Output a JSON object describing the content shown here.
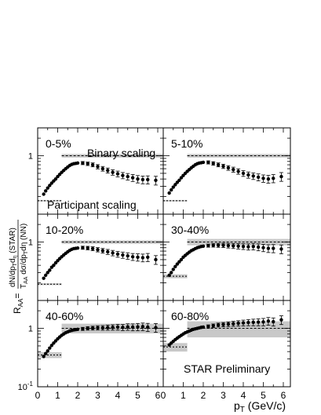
{
  "chart_data": {
    "type": "scatter",
    "y_scale": "log",
    "ylim": [
      0.1,
      3
    ],
    "xlim": [
      0,
      6.3
    ],
    "x_ticks": [
      0,
      1,
      2,
      3,
      4,
      5,
      6
    ],
    "y_ticks": [
      {
        "value": 0.1,
        "label": "10",
        "exp": "-1"
      },
      {
        "value": 1,
        "label": "1",
        "exp": ""
      }
    ],
    "xlabel": {
      "p": "p",
      "sub": "T",
      "rest": " (GeV/c)"
    },
    "ylabel": {
      "lhs": "R",
      "lhs_sub": "AA",
      "eq": "=",
      "num": "dN/dp",
      "num_sub1": "T",
      "num_mid": "d",
      "num_sub2": "η",
      "num_rest": " (STAR)",
      "den_pre": "T",
      "den_sub1": "AA",
      "den_mid": " dσ/dp",
      "den_sub2": "T",
      "den_mid2": "dη",
      "den_rest": " (NN)"
    },
    "annotations": {
      "binary": "Binary scaling",
      "participant": "Participant scaling",
      "star": "STAR Preliminary"
    },
    "panels": [
      {
        "label": "0-5%",
        "binary_band": [
          0.93,
          1.07
        ],
        "participant": {
          "value": 0.17,
          "band": [
            0.165,
            0.175
          ]
        },
        "points": [
          {
            "x": 0.3,
            "y": 0.22
          },
          {
            "x": 0.4,
            "y": 0.25
          },
          {
            "x": 0.5,
            "y": 0.28
          },
          {
            "x": 0.6,
            "y": 0.31
          },
          {
            "x": 0.7,
            "y": 0.34
          },
          {
            "x": 0.8,
            "y": 0.37
          },
          {
            "x": 0.9,
            "y": 0.4
          },
          {
            "x": 1.0,
            "y": 0.44
          },
          {
            "x": 1.1,
            "y": 0.48
          },
          {
            "x": 1.2,
            "y": 0.52
          },
          {
            "x": 1.3,
            "y": 0.56
          },
          {
            "x": 1.4,
            "y": 0.6
          },
          {
            "x": 1.5,
            "y": 0.64
          },
          {
            "x": 1.6,
            "y": 0.68
          },
          {
            "x": 1.7,
            "y": 0.71
          },
          {
            "x": 1.8,
            "y": 0.73
          },
          {
            "x": 1.9,
            "y": 0.74
          },
          {
            "x": 2.0,
            "y": 0.75
          },
          {
            "x": 2.25,
            "y": 0.75
          },
          {
            "x": 2.5,
            "y": 0.73
          },
          {
            "x": 2.75,
            "y": 0.7
          },
          {
            "x": 3.0,
            "y": 0.65
          },
          {
            "x": 3.25,
            "y": 0.6
          },
          {
            "x": 3.5,
            "y": 0.56
          },
          {
            "x": 3.75,
            "y": 0.52
          },
          {
            "x": 4.0,
            "y": 0.49
          },
          {
            "x": 4.25,
            "y": 0.46
          },
          {
            "x": 4.5,
            "y": 0.44
          },
          {
            "x": 4.75,
            "y": 0.42
          },
          {
            "x": 5.0,
            "y": 0.4
          },
          {
            "x": 5.25,
            "y": 0.39
          },
          {
            "x": 5.5,
            "y": 0.39
          },
          {
            "x": 5.9,
            "y": 0.38
          }
        ]
      },
      {
        "label": "5-10%",
        "binary_band": [
          0.93,
          1.07
        ],
        "participant": {
          "value": 0.17,
          "band": [
            0.165,
            0.175
          ]
        },
        "points": [
          {
            "x": 0.3,
            "y": 0.23
          },
          {
            "x": 0.4,
            "y": 0.26
          },
          {
            "x": 0.5,
            "y": 0.29
          },
          {
            "x": 0.6,
            "y": 0.32
          },
          {
            "x": 0.7,
            "y": 0.35
          },
          {
            "x": 0.8,
            "y": 0.38
          },
          {
            "x": 0.9,
            "y": 0.42
          },
          {
            "x": 1.0,
            "y": 0.46
          },
          {
            "x": 1.1,
            "y": 0.5
          },
          {
            "x": 1.2,
            "y": 0.54
          },
          {
            "x": 1.3,
            "y": 0.58
          },
          {
            "x": 1.4,
            "y": 0.62
          },
          {
            "x": 1.5,
            "y": 0.66
          },
          {
            "x": 1.6,
            "y": 0.7
          },
          {
            "x": 1.7,
            "y": 0.73
          },
          {
            "x": 1.8,
            "y": 0.75
          },
          {
            "x": 1.9,
            "y": 0.76
          },
          {
            "x": 2.0,
            "y": 0.77
          },
          {
            "x": 2.25,
            "y": 0.77
          },
          {
            "x": 2.5,
            "y": 0.74
          },
          {
            "x": 2.75,
            "y": 0.7
          },
          {
            "x": 3.0,
            "y": 0.66
          },
          {
            "x": 3.25,
            "y": 0.62
          },
          {
            "x": 3.5,
            "y": 0.58
          },
          {
            "x": 3.75,
            "y": 0.54
          },
          {
            "x": 4.0,
            "y": 0.5
          },
          {
            "x": 4.25,
            "y": 0.47
          },
          {
            "x": 4.5,
            "y": 0.45
          },
          {
            "x": 4.75,
            "y": 0.43
          },
          {
            "x": 5.0,
            "y": 0.41
          },
          {
            "x": 5.25,
            "y": 0.4
          },
          {
            "x": 5.5,
            "y": 0.41
          },
          {
            "x": 5.9,
            "y": 0.44
          }
        ]
      },
      {
        "label": "10-20%",
        "binary_band": [
          0.93,
          1.07
        ],
        "participant": {
          "value": 0.19,
          "band": [
            0.183,
            0.197
          ]
        },
        "points": [
          {
            "x": 0.3,
            "y": 0.24
          },
          {
            "x": 0.4,
            "y": 0.27
          },
          {
            "x": 0.5,
            "y": 0.3
          },
          {
            "x": 0.6,
            "y": 0.33
          },
          {
            "x": 0.7,
            "y": 0.37
          },
          {
            "x": 0.8,
            "y": 0.4
          },
          {
            "x": 0.9,
            "y": 0.44
          },
          {
            "x": 1.0,
            "y": 0.48
          },
          {
            "x": 1.1,
            "y": 0.52
          },
          {
            "x": 1.2,
            "y": 0.56
          },
          {
            "x": 1.3,
            "y": 0.6
          },
          {
            "x": 1.4,
            "y": 0.64
          },
          {
            "x": 1.5,
            "y": 0.68
          },
          {
            "x": 1.6,
            "y": 0.72
          },
          {
            "x": 1.7,
            "y": 0.75
          },
          {
            "x": 1.8,
            "y": 0.77
          },
          {
            "x": 1.9,
            "y": 0.78
          },
          {
            "x": 2.0,
            "y": 0.79
          },
          {
            "x": 2.25,
            "y": 0.8
          },
          {
            "x": 2.5,
            "y": 0.79
          },
          {
            "x": 2.75,
            "y": 0.77
          },
          {
            "x": 3.0,
            "y": 0.74
          },
          {
            "x": 3.25,
            "y": 0.71
          },
          {
            "x": 3.5,
            "y": 0.68
          },
          {
            "x": 3.75,
            "y": 0.65
          },
          {
            "x": 4.0,
            "y": 0.62
          },
          {
            "x": 4.25,
            "y": 0.6
          },
          {
            "x": 4.5,
            "y": 0.58
          },
          {
            "x": 4.75,
            "y": 0.56
          },
          {
            "x": 5.0,
            "y": 0.55
          },
          {
            "x": 5.25,
            "y": 0.54
          },
          {
            "x": 5.5,
            "y": 0.55
          },
          {
            "x": 5.9,
            "y": 0.5
          }
        ]
      },
      {
        "label": "30-40%",
        "binary_band": [
          0.88,
          1.13
        ],
        "participant": {
          "value": 0.26,
          "band": [
            0.24,
            0.28
          ]
        },
        "points": [
          {
            "x": 0.3,
            "y": 0.27
          },
          {
            "x": 0.4,
            "y": 0.3
          },
          {
            "x": 0.5,
            "y": 0.34
          },
          {
            "x": 0.6,
            "y": 0.38
          },
          {
            "x": 0.7,
            "y": 0.42
          },
          {
            "x": 0.8,
            "y": 0.46
          },
          {
            "x": 0.9,
            "y": 0.5
          },
          {
            "x": 1.0,
            "y": 0.55
          },
          {
            "x": 1.1,
            "y": 0.59
          },
          {
            "x": 1.2,
            "y": 0.63
          },
          {
            "x": 1.3,
            "y": 0.67
          },
          {
            "x": 1.4,
            "y": 0.71
          },
          {
            "x": 1.5,
            "y": 0.74
          },
          {
            "x": 1.6,
            "y": 0.77
          },
          {
            "x": 1.7,
            "y": 0.8
          },
          {
            "x": 1.8,
            "y": 0.82
          },
          {
            "x": 1.9,
            "y": 0.84
          },
          {
            "x": 2.0,
            "y": 0.85
          },
          {
            "x": 2.25,
            "y": 0.87
          },
          {
            "x": 2.5,
            "y": 0.88
          },
          {
            "x": 2.75,
            "y": 0.88
          },
          {
            "x": 3.0,
            "y": 0.88
          },
          {
            "x": 3.25,
            "y": 0.87
          },
          {
            "x": 3.5,
            "y": 0.86
          },
          {
            "x": 3.75,
            "y": 0.85
          },
          {
            "x": 4.0,
            "y": 0.84
          },
          {
            "x": 4.25,
            "y": 0.83
          },
          {
            "x": 4.5,
            "y": 0.84
          },
          {
            "x": 4.75,
            "y": 0.82
          },
          {
            "x": 5.0,
            "y": 0.8
          },
          {
            "x": 5.25,
            "y": 0.78
          },
          {
            "x": 5.5,
            "y": 0.78
          },
          {
            "x": 5.9,
            "y": 0.76
          }
        ]
      },
      {
        "label": "40-60%",
        "binary_band": [
          0.82,
          1.2
        ],
        "participant": {
          "value": 0.35,
          "band": [
            0.31,
            0.39
          ]
        },
        "points": [
          {
            "x": 0.3,
            "y": 0.33
          },
          {
            "x": 0.4,
            "y": 0.37
          },
          {
            "x": 0.5,
            "y": 0.41
          },
          {
            "x": 0.6,
            "y": 0.46
          },
          {
            "x": 0.7,
            "y": 0.51
          },
          {
            "x": 0.8,
            "y": 0.56
          },
          {
            "x": 0.9,
            "y": 0.61
          },
          {
            "x": 1.0,
            "y": 0.66
          },
          {
            "x": 1.1,
            "y": 0.71
          },
          {
            "x": 1.2,
            "y": 0.76
          },
          {
            "x": 1.3,
            "y": 0.8
          },
          {
            "x": 1.4,
            "y": 0.84
          },
          {
            "x": 1.5,
            "y": 0.87
          },
          {
            "x": 1.6,
            "y": 0.9
          },
          {
            "x": 1.7,
            "y": 0.92
          },
          {
            "x": 1.8,
            "y": 0.94
          },
          {
            "x": 1.9,
            "y": 0.95
          },
          {
            "x": 2.0,
            "y": 0.96
          },
          {
            "x": 2.25,
            "y": 0.98
          },
          {
            "x": 2.5,
            "y": 1.0
          },
          {
            "x": 2.75,
            "y": 1.01
          },
          {
            "x": 3.0,
            "y": 1.02
          },
          {
            "x": 3.25,
            "y": 1.02
          },
          {
            "x": 3.5,
            "y": 1.03
          },
          {
            "x": 3.75,
            "y": 1.04
          },
          {
            "x": 4.0,
            "y": 1.05
          },
          {
            "x": 4.25,
            "y": 1.04
          },
          {
            "x": 4.5,
            "y": 1.06
          },
          {
            "x": 4.75,
            "y": 1.05
          },
          {
            "x": 5.0,
            "y": 1.06
          },
          {
            "x": 5.25,
            "y": 1.07
          },
          {
            "x": 5.5,
            "y": 1.05
          },
          {
            "x": 5.9,
            "y": 1.03
          }
        ]
      },
      {
        "label": "60-80%",
        "binary_band": [
          0.7,
          1.32
        ],
        "participant": {
          "value": 0.48,
          "band": [
            0.4,
            0.56
          ]
        },
        "points": [
          {
            "x": 0.3,
            "y": 0.52
          },
          {
            "x": 0.4,
            "y": 0.56
          },
          {
            "x": 0.5,
            "y": 0.6
          },
          {
            "x": 0.6,
            "y": 0.64
          },
          {
            "x": 0.7,
            "y": 0.68
          },
          {
            "x": 0.8,
            "y": 0.72
          },
          {
            "x": 0.9,
            "y": 0.76
          },
          {
            "x": 1.0,
            "y": 0.8
          },
          {
            "x": 1.1,
            "y": 0.84
          },
          {
            "x": 1.2,
            "y": 0.87
          },
          {
            "x": 1.3,
            "y": 0.9
          },
          {
            "x": 1.4,
            "y": 0.93
          },
          {
            "x": 1.5,
            "y": 0.96
          },
          {
            "x": 1.6,
            "y": 0.98
          },
          {
            "x": 1.7,
            "y": 1.0
          },
          {
            "x": 1.8,
            "y": 1.02
          },
          {
            "x": 1.9,
            "y": 1.04
          },
          {
            "x": 2.0,
            "y": 1.05
          },
          {
            "x": 2.25,
            "y": 1.08
          },
          {
            "x": 2.5,
            "y": 1.11
          },
          {
            "x": 2.75,
            "y": 1.14
          },
          {
            "x": 3.0,
            "y": 1.16
          },
          {
            "x": 3.25,
            "y": 1.18
          },
          {
            "x": 3.5,
            "y": 1.2
          },
          {
            "x": 3.75,
            "y": 1.22
          },
          {
            "x": 4.0,
            "y": 1.24
          },
          {
            "x": 4.25,
            "y": 1.26
          },
          {
            "x": 4.5,
            "y": 1.27
          },
          {
            "x": 4.75,
            "y": 1.28
          },
          {
            "x": 5.0,
            "y": 1.29
          },
          {
            "x": 5.25,
            "y": 1.33
          },
          {
            "x": 5.5,
            "y": 1.3
          },
          {
            "x": 5.9,
            "y": 1.4
          }
        ]
      }
    ]
  }
}
